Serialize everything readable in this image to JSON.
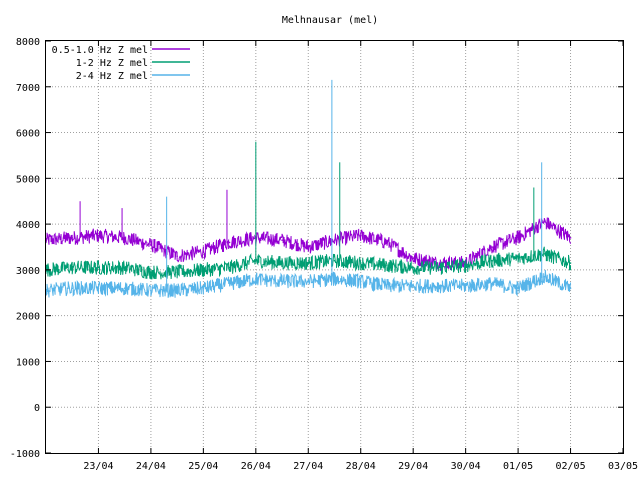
{
  "chart_data": {
    "type": "line",
    "title": "Melhnausar (mel)",
    "ylim": [
      -1000,
      8000
    ],
    "xlim_days": [
      0,
      11
    ],
    "y_ticks": [
      "8000",
      "7000",
      "6000",
      "5000",
      "4000",
      "3000",
      "2000",
      "1000",
      "0",
      "-1000"
    ],
    "y_tick_values": [
      8000,
      7000,
      6000,
      5000,
      4000,
      3000,
      2000,
      1000,
      0,
      -1000
    ],
    "x_ticks": [
      "23/04",
      "24/04",
      "25/04",
      "26/04",
      "27/04",
      "28/04",
      "29/04",
      "30/04",
      "01/05",
      "02/05",
      "03/05"
    ],
    "grid": true,
    "legend_position": "top-left",
    "series": [
      {
        "name": "0.5-1.0 Hz Z mel",
        "color": "#9400d3",
        "x": [
          0,
          0.5,
          1,
          1.5,
          2,
          2.5,
          3,
          3.5,
          4,
          4.5,
          5,
          5.5,
          6,
          6.5,
          7,
          7.5,
          8,
          8.5,
          9,
          9.5,
          10
        ],
        "values": [
          3650,
          3700,
          3750,
          3700,
          3550,
          3300,
          3400,
          3600,
          3700,
          3650,
          3500,
          3650,
          3750,
          3600,
          3250,
          3150,
          3150,
          3500,
          3700,
          4050,
          3700
        ],
        "spikes": [
          {
            "x": 0.65,
            "y": 4500
          },
          {
            "x": 1.45,
            "y": 4350
          },
          {
            "x": 3.45,
            "y": 4750
          }
        ]
      },
      {
        "name": "1-2 Hz Z mel",
        "color": "#009e73",
        "x": [
          0,
          0.5,
          1,
          1.5,
          2,
          2.5,
          3,
          3.5,
          4,
          4.5,
          5,
          5.5,
          6,
          6.5,
          7,
          7.5,
          8,
          8.5,
          9,
          9.5,
          10
        ],
        "values": [
          3000,
          3050,
          3050,
          3050,
          2950,
          2950,
          3000,
          3050,
          3200,
          3150,
          3150,
          3200,
          3150,
          3100,
          3050,
          3050,
          3100,
          3200,
          3250,
          3350,
          3150
        ],
        "spikes": [
          {
            "x": 4.0,
            "y": 5800
          },
          {
            "x": 5.6,
            "y": 5350
          },
          {
            "x": 9.3,
            "y": 4800
          }
        ]
      },
      {
        "name": "2-4 Hz Z mel",
        "color": "#56b4e9",
        "x": [
          0,
          0.5,
          1,
          1.5,
          2,
          2.5,
          3,
          3.5,
          4,
          4.5,
          5,
          5.5,
          6,
          6.5,
          7,
          7.5,
          8,
          8.5,
          9,
          9.5,
          10
        ],
        "values": [
          2550,
          2600,
          2600,
          2600,
          2550,
          2550,
          2600,
          2700,
          2800,
          2750,
          2750,
          2800,
          2750,
          2650,
          2650,
          2650,
          2650,
          2700,
          2600,
          2850,
          2600
        ],
        "spikes": [
          {
            "x": 2.3,
            "y": 4600
          },
          {
            "x": 5.45,
            "y": 7150
          },
          {
            "x": 9.45,
            "y": 5350
          }
        ]
      }
    ]
  }
}
